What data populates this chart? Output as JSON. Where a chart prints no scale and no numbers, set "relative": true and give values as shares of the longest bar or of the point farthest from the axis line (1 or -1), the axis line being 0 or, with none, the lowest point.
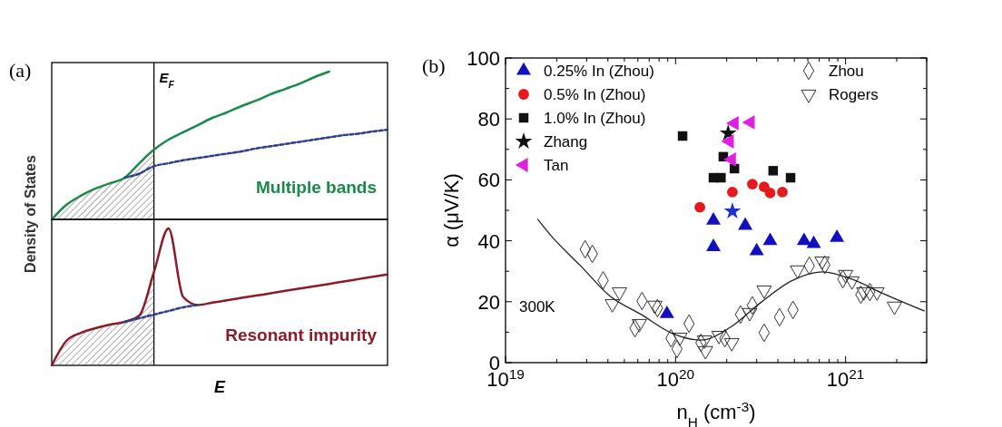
{
  "chart_data": [
    {
      "type": "line",
      "title": "(a)",
      "ylabel": "Density of States",
      "relative": true,
      "legend": false,
      "annotations": [
        "E$_{F}$"
      ],
      "categories": [
        null,
        null,
        null,
        null,
        null,
        null,
        null,
        null,
        null,
        null,
        null,
        null,
        null,
        null,
        null,
        null,
        null,
        null,
        null,
        null,
        null,
        null,
        null,
        null
      ],
      "series": [
        {
          "type": "area",
          "color": "#555555",
          "values": [
            0,
            0.098,
            0.16,
            0.209,
            0.245,
            0.282,
            0.38,
            0.472,
            null,
            null,
            null,
            null,
            null,
            null,
            null,
            null,
            null,
            null,
            null,
            null,
            null,
            null,
            null,
            null
          ]
        },
        {
          "name": "Multiple bands",
          "color": "#1a8a4a",
          "values": [
            0,
            0.098,
            0.16,
            0.209,
            0.245,
            0.282,
            0.38,
            0.472,
            0.54,
            0.589,
            0.638,
            0.687,
            0.724,
            0.767,
            0.804,
            0.847,
            0.883,
            0.92,
            0.963,
            1,
            null,
            null,
            null,
            null
          ]
        },
        {
          "color": "#2c3e8c",
          "line_style": "dashed",
          "values": [
            null,
            null,
            null,
            null,
            null,
            0.282,
            0.31,
            0.36,
            0.38,
            0.4,
            0.415,
            0.43,
            0.445,
            0.46,
            0.48,
            0.495,
            0.51,
            0.525,
            0.54,
            0.555,
            0.57,
            0.58,
            0.595,
            0.607
          ]
        }
      ]
    },
    {
      "type": "line",
      "xlabel": "E",
      "relative": true,
      "legend": false,
      "categories": [
        null,
        null,
        null,
        null,
        null,
        null,
        null,
        null,
        null,
        null,
        null,
        null,
        null,
        null,
        null,
        null,
        null,
        null,
        null,
        null,
        null,
        null,
        null,
        null
      ],
      "series": [
        {
          "type": "area",
          "color": "#555555",
          "values": [
            0,
            0.179,
            0.238,
            0.272,
            0.298,
            0.318,
            0.364,
            0.682,
            null,
            null,
            null,
            null,
            null,
            null,
            null,
            null,
            null,
            null,
            null,
            null,
            null,
            null,
            null,
            null
          ]
        },
        {
          "name": "Resonant impurity",
          "color": "#8b1a2a",
          "values": [
            0,
            0.179,
            0.238,
            0.272,
            0.298,
            0.318,
            0.364,
            0.682,
            1,
            0.5,
            0.441,
            0.458,
            0.475,
            0.493,
            0.51,
            0.526,
            0.544,
            0.561,
            0.578,
            0.595,
            0.613,
            0.63,
            0.647,
            0.664
          ]
        },
        {
          "color": "#2c3e8c",
          "line_style": "dashed",
          "values": [
            null,
            null,
            null,
            null,
            null,
            0.318,
            0.344,
            0.371,
            0.397,
            0.424,
            0.441,
            null,
            null,
            null,
            null,
            null,
            null,
            null,
            null,
            null,
            null,
            null,
            null,
            null
          ]
        }
      ]
    },
    {
      "type": "scatter",
      "title": "(b)",
      "xlabel": "n$_{H}$ (cm$^{-3}$)",
      "ylabel": "α (μV/K)",
      "log": "x",
      "legend": "top",
      "annotations": [
        "300K"
      ],
      "xlim": [
        1e+19,
        3e+21
      ],
      "xticks": [
        {
          "value": 1e+19,
          "label": "10$^{19}$"
        },
        {
          "value": 2e+19,
          "label": null
        },
        {
          "value": 3e+19,
          "label": null
        },
        {
          "value": 4e+19,
          "label": null
        },
        {
          "value": 5e+19,
          "label": null
        },
        {
          "value": 6e+19,
          "label": null
        },
        {
          "value": 7e+19,
          "label": null
        },
        {
          "value": 8e+19,
          "label": null
        },
        {
          "value": 9e+19,
          "label": null
        },
        {
          "value": 1e+20,
          "label": "10$^{20}$"
        },
        {
          "value": 2e+20,
          "label": null
        },
        {
          "value": 3e+20,
          "label": null
        },
        {
          "value": 4e+20,
          "label": null
        },
        {
          "value": 5e+20,
          "label": null
        },
        {
          "value": 6e+20,
          "label": null
        },
        {
          "value": 7e+20,
          "label": null
        },
        {
          "value": 8e+20,
          "label": null
        },
        {
          "value": 9e+20,
          "label": null
        },
        {
          "value": 1e+21,
          "label": "10$^{21}$"
        },
        {
          "value": 2e+21,
          "label": null
        },
        {
          "value": 3e+21,
          "label": null
        }
      ],
      "ylim": [
        0,
        100
      ],
      "yticks": [
        0,
        {
          "value": 10,
          "label": null
        },
        20,
        {
          "value": 30,
          "label": null
        },
        40,
        {
          "value": 50,
          "label": null
        },
        60,
        {
          "value": 70,
          "label": null
        },
        80,
        {
          "value": 90,
          "label": null
        },
        100
      ],
      "series": [
        {
          "name": "0.25% In (Zhou)",
          "color": "#1010c0",
          "marker": "triangle",
          "x": [
            8.9e+19,
            1.67e+20,
            1.67e+20,
            2.57e+20,
            3e+20,
            3.6e+20,
            5.7e+20,
            6.5e+20,
            8.9e+20
          ],
          "values": [
            16,
            46.7,
            38,
            45,
            36.6,
            40,
            40,
            39,
            41
          ]
        },
        {
          "name": "0.5% In (Zhou)",
          "color": "#e41a1c",
          "marker": "circle",
          "x": [
            1.39e+20,
            2.16e+20,
            2.83e+20,
            3.32e+20,
            3.6e+20,
            4.25e+20
          ],
          "values": [
            51,
            56,
            58.6,
            57.7,
            55.7,
            56
          ]
        },
        {
          "name": "1.0% In (Zhou)",
          "color": "#111111",
          "marker": "square",
          "x": [
            1.1e+20,
            1.67e+20,
            1.85e+20,
            1.91e+20,
            2.22e+20,
            3.75e+20,
            4.75e+20
          ],
          "values": [
            74.4,
            60.7,
            60.7,
            67.6,
            63.7,
            63,
            60.7
          ]
        },
        {
          "name": "Zhang",
          "color": "#111111",
          "marker": "star",
          "x": [
            2.04e+20
          ],
          "values": [
            75.3
          ]
        },
        {
          "name": "Tan",
          "color": "#e020e0",
          "marker": "triangle-left",
          "x": [
            2.08e+20,
            2.14e+20,
            2.22e+20,
            2.76e+20
          ],
          "values": [
            72.6,
            66.7,
            78.6,
            78.9
          ]
        },
        {
          "color": "#1f2fd0",
          "marker": "star",
          "x": [
            2.16e+20
          ],
          "values": [
            49.7
          ]
        },
        {
          "name": "Zhou",
          "color": "#333333",
          "marker": "diamond-open",
          "x": [
            2.94e+19,
            3.24e+19,
            3.75e+19,
            5.77e+19,
            6.35e+19,
            7.83e+19,
            9.4e+19,
            1.02e+20,
            1.2e+20,
            1.41e+20,
            1.95e+20,
            2.41e+20,
            2.83e+20,
            3.32e+20,
            4.09e+20,
            4.91e+20,
            6.12e+20,
            7.55e+20,
            9.64e+20,
            1.23e+21,
            1.39e+21
          ],
          "values": [
            37.2,
            35.7,
            27,
            11.3,
            20.2,
            17.9,
            8,
            4.5,
            12.8,
            6.5,
            8,
            15.8,
            18.8,
            9.8,
            14.9,
            17.3,
            31.8,
            32.1,
            27.4,
            22.3,
            23.2
          ]
        },
        {
          "name": "Rogers",
          "color": "#333333",
          "marker": "triangle-down-open",
          "x": [
            4.25e+19,
            4.68e+19,
            6.12e+19,
            7.55e+19,
            1.06e+20,
            1.48e+20,
            1.5e+20,
            1.8e+20,
            2.14e+20,
            2.73e+20,
            3.32e+20,
            5.22e+20,
            7.28e+20,
            1e+21,
            1.09e+21,
            1.28e+21,
            1.53e+21,
            1.94e+21
          ],
          "values": [
            19.3,
            23.2,
            12.8,
            18.8,
            8.3,
            7.4,
            3.9,
            8.9,
            6.5,
            16.4,
            23.8,
            30.4,
            33.3,
            28.9,
            26.8,
            23.2,
            23.2,
            18.5
          ]
        },
        {
          "type": "line",
          "color": "#222222",
          "marker": "none",
          "x": [
            1.55e+19,
            1.85e+19,
            2.76e+19,
            4.14e+19,
            6.28e+19,
            9.4e+19,
            1.41e+20,
            2.14e+20,
            3.2e+20,
            4.8e+20,
            7.28e+20,
            1.09e+21,
            1.63e+21,
            2.9e+21
          ],
          "values": [
            47,
            41.7,
            31.8,
            21.7,
            15.8,
            9.8,
            7.4,
            11.9,
            19.9,
            26.8,
            29.8,
            27.4,
            22.9,
            17
          ]
        }
      ]
    }
  ]
}
